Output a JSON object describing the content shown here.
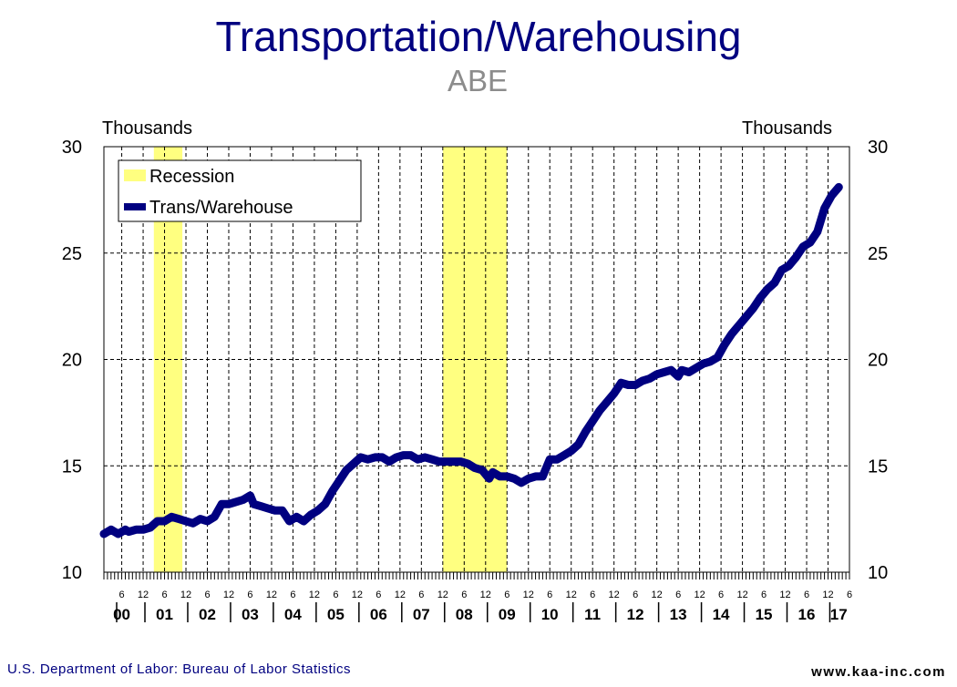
{
  "chart_data": {
    "type": "line",
    "title": "Transportation/Warehousing",
    "subtitle": "ABE",
    "ylabel_left": "Thousands",
    "ylabel_right": "Thousands",
    "ylim": [
      10,
      30
    ],
    "yticks": [
      10,
      15,
      20,
      25,
      30
    ],
    "month_tick_labels": [
      "6",
      "12"
    ],
    "year_labels": [
      "00",
      "01",
      "02",
      "03",
      "04",
      "05",
      "06",
      "07",
      "08",
      "09",
      "10",
      "11",
      "12",
      "13",
      "14",
      "15",
      "16",
      "17"
    ],
    "x_start": "2000-01",
    "x_end": "2017-06",
    "grid": "vertical dashed at each month 6 and 12",
    "legend": {
      "position": "top-left",
      "entries": [
        {
          "label": "Recession",
          "color": "#ffff80"
        },
        {
          "label": "Trans/Warehouse",
          "color": "#000080"
        }
      ]
    },
    "recessions": [
      {
        "start": "2001-03",
        "end": "2001-11"
      },
      {
        "start": "2007-12",
        "end": "2009-06"
      }
    ],
    "series": [
      {
        "name": "Trans/Warehouse",
        "color": "#000080",
        "points": [
          [
            "2000-01",
            11.8
          ],
          [
            "2000-03",
            12.0
          ],
          [
            "2000-05",
            11.8
          ],
          [
            "2000-07",
            12.0
          ],
          [
            "2000-08",
            11.9
          ],
          [
            "2000-10",
            12.0
          ],
          [
            "2000-12",
            12.0
          ],
          [
            "2001-02",
            12.1
          ],
          [
            "2001-04",
            12.4
          ],
          [
            "2001-06",
            12.4
          ],
          [
            "2001-08",
            12.6
          ],
          [
            "2001-10",
            12.5
          ],
          [
            "2001-12",
            12.4
          ],
          [
            "2002-02",
            12.3
          ],
          [
            "2002-04",
            12.5
          ],
          [
            "2002-06",
            12.4
          ],
          [
            "2002-08",
            12.6
          ],
          [
            "2002-10",
            13.2
          ],
          [
            "2002-12",
            13.2
          ],
          [
            "2003-02",
            13.3
          ],
          [
            "2003-04",
            13.4
          ],
          [
            "2003-06",
            13.6
          ],
          [
            "2003-07",
            13.2
          ],
          [
            "2003-09",
            13.1
          ],
          [
            "2003-11",
            13.0
          ],
          [
            "2004-01",
            12.9
          ],
          [
            "2004-03",
            12.9
          ],
          [
            "2004-05",
            12.4
          ],
          [
            "2004-07",
            12.6
          ],
          [
            "2004-09",
            12.4
          ],
          [
            "2004-11",
            12.7
          ],
          [
            "2005-01",
            12.9
          ],
          [
            "2005-03",
            13.2
          ],
          [
            "2005-05",
            13.8
          ],
          [
            "2005-07",
            14.3
          ],
          [
            "2005-09",
            14.8
          ],
          [
            "2005-11",
            15.1
          ],
          [
            "2006-01",
            15.4
          ],
          [
            "2006-03",
            15.3
          ],
          [
            "2006-05",
            15.4
          ],
          [
            "2006-07",
            15.4
          ],
          [
            "2006-09",
            15.2
          ],
          [
            "2006-11",
            15.4
          ],
          [
            "2007-01",
            15.5
          ],
          [
            "2007-03",
            15.5
          ],
          [
            "2007-05",
            15.3
          ],
          [
            "2007-07",
            15.4
          ],
          [
            "2007-09",
            15.3
          ],
          [
            "2007-11",
            15.2
          ],
          [
            "2008-01",
            15.2
          ],
          [
            "2008-03",
            15.2
          ],
          [
            "2008-05",
            15.2
          ],
          [
            "2008-07",
            15.1
          ],
          [
            "2008-09",
            14.9
          ],
          [
            "2008-11",
            14.8
          ],
          [
            "2009-01",
            14.4
          ],
          [
            "2009-02",
            14.7
          ],
          [
            "2009-04",
            14.5
          ],
          [
            "2009-06",
            14.5
          ],
          [
            "2009-08",
            14.4
          ],
          [
            "2009-10",
            14.2
          ],
          [
            "2009-12",
            14.4
          ],
          [
            "2010-02",
            14.5
          ],
          [
            "2010-04",
            14.5
          ],
          [
            "2010-06",
            15.3
          ],
          [
            "2010-08",
            15.3
          ],
          [
            "2010-10",
            15.5
          ],
          [
            "2010-12",
            15.7
          ],
          [
            "2011-02",
            16.0
          ],
          [
            "2011-04",
            16.6
          ],
          [
            "2011-06",
            17.1
          ],
          [
            "2011-08",
            17.6
          ],
          [
            "2011-10",
            18.0
          ],
          [
            "2011-12",
            18.4
          ],
          [
            "2012-02",
            18.9
          ],
          [
            "2012-04",
            18.8
          ],
          [
            "2012-06",
            18.8
          ],
          [
            "2012-08",
            19.0
          ],
          [
            "2012-10",
            19.1
          ],
          [
            "2012-12",
            19.3
          ],
          [
            "2013-02",
            19.4
          ],
          [
            "2013-04",
            19.5
          ],
          [
            "2013-06",
            19.2
          ],
          [
            "2013-07",
            19.5
          ],
          [
            "2013-09",
            19.4
          ],
          [
            "2013-11",
            19.6
          ],
          [
            "2014-01",
            19.8
          ],
          [
            "2014-03",
            19.9
          ],
          [
            "2014-05",
            20.1
          ],
          [
            "2014-07",
            20.7
          ],
          [
            "2014-09",
            21.2
          ],
          [
            "2014-11",
            21.6
          ],
          [
            "2015-01",
            22.0
          ],
          [
            "2015-03",
            22.4
          ],
          [
            "2015-05",
            22.9
          ],
          [
            "2015-07",
            23.3
          ],
          [
            "2015-09",
            23.6
          ],
          [
            "2015-11",
            24.2
          ],
          [
            "2016-01",
            24.4
          ],
          [
            "2016-03",
            24.8
          ],
          [
            "2016-05",
            25.3
          ],
          [
            "2016-07",
            25.5
          ],
          [
            "2016-09",
            26.0
          ],
          [
            "2016-11",
            27.1
          ],
          [
            "2017-01",
            27.7
          ],
          [
            "2017-03",
            28.1
          ]
        ]
      }
    ]
  },
  "footer": {
    "source": "U.S. Department of Labor: Bureau of Labor Statistics",
    "website": "www.kaa-inc.com"
  }
}
